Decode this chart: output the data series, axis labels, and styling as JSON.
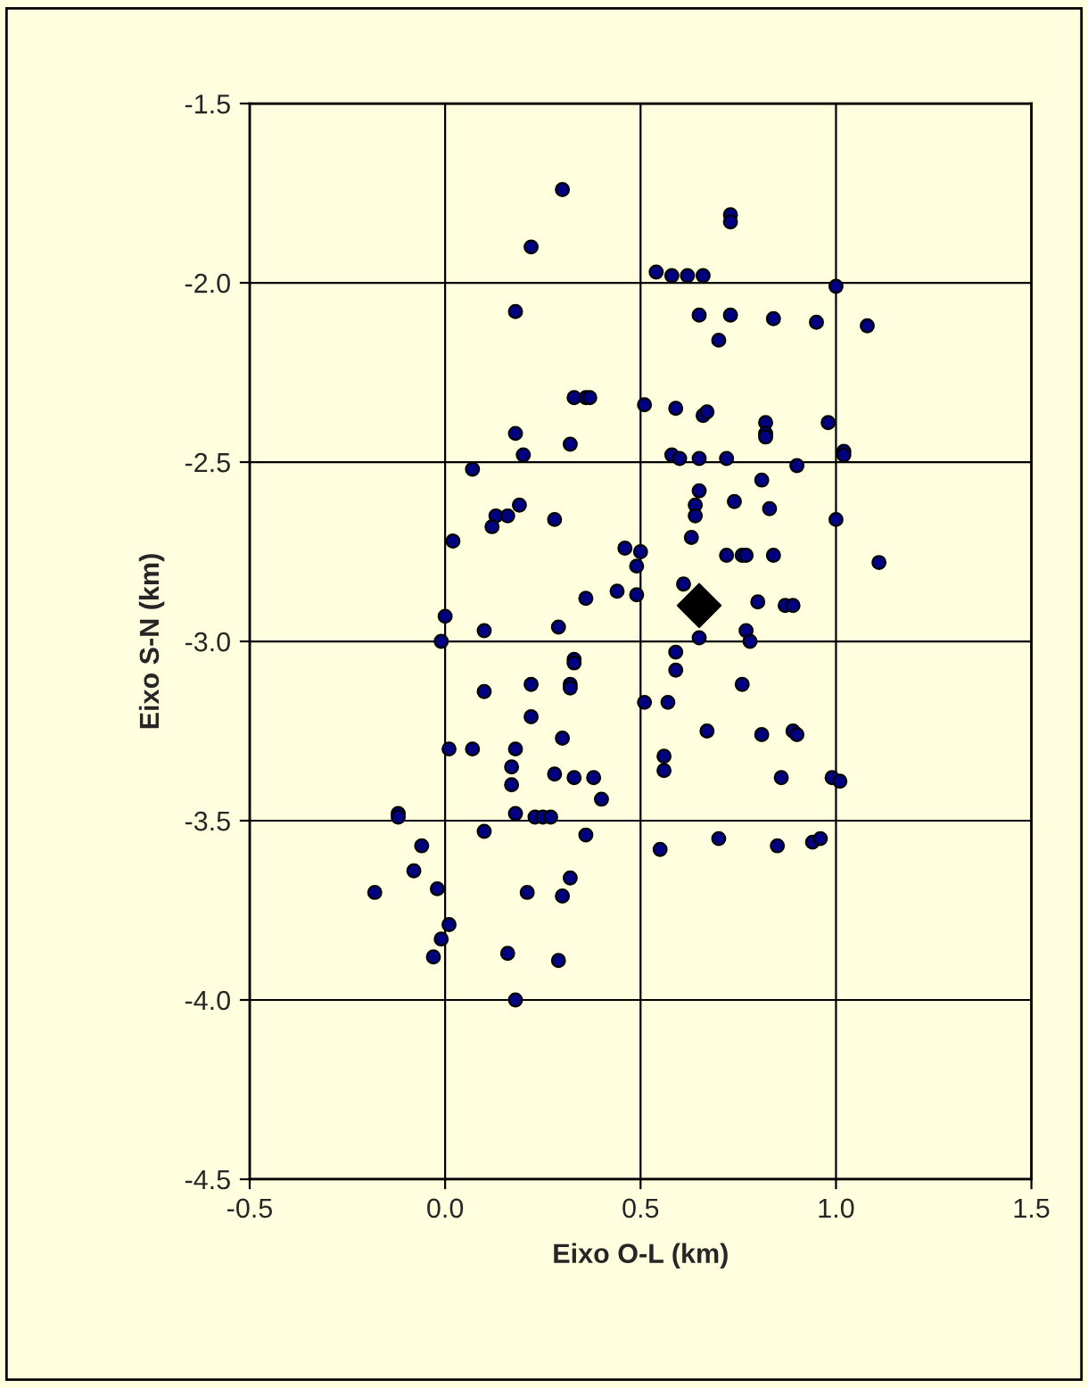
{
  "chart_data": {
    "type": "scatter",
    "xlabel": "Eixo O-L (km)",
    "ylabel": "Eixo S-N (km)",
    "xlim": [
      -0.5,
      1.5
    ],
    "ylim": [
      -4.5,
      -1.5
    ],
    "xticks": [
      {
        "value": -0.5,
        "label": "-0.5"
      },
      {
        "value": 0,
        "label": "0.0"
      },
      {
        "value": 0.5,
        "label": "0.5"
      },
      {
        "value": 1,
        "label": "1.0"
      },
      {
        "value": 1.5,
        "label": "1.5"
      }
    ],
    "yticks": [
      {
        "value": -4.5,
        "label": "-4.5"
      },
      {
        "value": -4,
        "label": "-4.0"
      },
      {
        "value": -3.5,
        "label": "-3.5"
      },
      {
        "value": -3,
        "label": "-3.0"
      },
      {
        "value": -2.5,
        "label": "-2.5"
      },
      {
        "value": -2,
        "label": "-2.0"
      },
      {
        "value": -1.5,
        "label": "-1.5"
      }
    ],
    "grid": true,
    "legend": false,
    "series": [
      {
        "color": "#000080",
        "marker": "circle",
        "x": [
          0.3,
          0.22,
          0.18,
          0.33,
          0.36,
          0.37,
          0.51,
          0.18,
          0.32,
          0.2,
          0.07,
          0.19,
          0.13,
          0.16,
          0.12,
          0.28,
          0.02,
          0.46,
          0.5,
          0.49,
          0.44,
          0.49,
          0.36,
          0.0,
          0.1,
          0.29,
          -0.01,
          0.73,
          0.73,
          0.54,
          0.58,
          0.62,
          0.66,
          1.0,
          0.65,
          0.73,
          0.84,
          0.95,
          1.08,
          0.7,
          0.59,
          0.66,
          0.67,
          0.82,
          0.82,
          0.82,
          0.98,
          1.02,
          1.02,
          0.58,
          0.6,
          0.65,
          0.72,
          0.9,
          0.81,
          0.65,
          0.74,
          0.64,
          0.64,
          0.83,
          1.0,
          0.63,
          0.72,
          0.76,
          0.77,
          0.84,
          1.11,
          0.61,
          0.8,
          0.87,
          0.89,
          0.77,
          0.78,
          0.65,
          0.59,
          0.33,
          0.33,
          0.32,
          0.32,
          0.22,
          0.1,
          0.51,
          0.22,
          0.3,
          0.01,
          0.07,
          0.18,
          0.17,
          0.28,
          0.33,
          0.38,
          0.17,
          0.4,
          -0.12,
          -0.12,
          0.18,
          0.23,
          0.25,
          0.27,
          0.1,
          0.36,
          -0.06,
          -0.08,
          0.32,
          -0.18,
          -0.02,
          0.21,
          0.3,
          0.01,
          -0.01,
          -0.03,
          0.16,
          0.29,
          0.18,
          0.59,
          0.76,
          0.57,
          0.67,
          0.81,
          0.89,
          0.9,
          0.56,
          0.56,
          0.86,
          0.99,
          1.01,
          0.7,
          0.55,
          0.85,
          0.94,
          0.96
        ],
        "values": [
          -1.74,
          -1.9,
          -2.08,
          -2.32,
          -2.32,
          -2.32,
          -2.34,
          -2.42,
          -2.45,
          -2.48,
          -2.52,
          -2.62,
          -2.65,
          -2.65,
          -2.68,
          -2.66,
          -2.72,
          -2.74,
          -2.75,
          -2.79,
          -2.86,
          -2.87,
          -2.88,
          -2.93,
          -2.97,
          -2.96,
          -3.0,
          -1.81,
          -1.83,
          -1.97,
          -1.98,
          -1.98,
          -1.98,
          -2.01,
          -2.09,
          -2.09,
          -2.1,
          -2.11,
          -2.12,
          -2.16,
          -2.35,
          -2.37,
          -2.36,
          -2.39,
          -2.42,
          -2.43,
          -2.39,
          -2.47,
          -2.48,
          -2.48,
          -2.49,
          -2.49,
          -2.49,
          -2.51,
          -2.55,
          -2.58,
          -2.61,
          -2.62,
          -2.65,
          -2.63,
          -2.66,
          -2.71,
          -2.76,
          -2.76,
          -2.76,
          -2.76,
          -2.78,
          -2.84,
          -2.89,
          -2.9,
          -2.9,
          -2.97,
          -3.0,
          -2.99,
          -3.03,
          -3.05,
          -3.06,
          -3.12,
          -3.13,
          -3.12,
          -3.14,
          -3.17,
          -3.21,
          -3.27,
          -3.3,
          -3.3,
          -3.3,
          -3.35,
          -3.37,
          -3.38,
          -3.38,
          -3.4,
          -3.44,
          -3.48,
          -3.49,
          -3.48,
          -3.49,
          -3.49,
          -3.49,
          -3.53,
          -3.54,
          -3.57,
          -3.64,
          -3.66,
          -3.7,
          -3.69,
          -3.7,
          -3.71,
          -3.79,
          -3.83,
          -3.88,
          -3.87,
          -3.89,
          -4.0,
          -3.08,
          -3.12,
          -3.17,
          -3.25,
          -3.26,
          -3.25,
          -3.26,
          -3.32,
          -3.36,
          -3.38,
          -3.38,
          -3.39,
          -3.55,
          -3.58,
          -3.57,
          -3.56,
          -3.55
        ]
      },
      {
        "color": "#000000",
        "marker": "diamond",
        "x": [
          0.65
        ],
        "values": [
          -2.9
        ]
      }
    ]
  }
}
